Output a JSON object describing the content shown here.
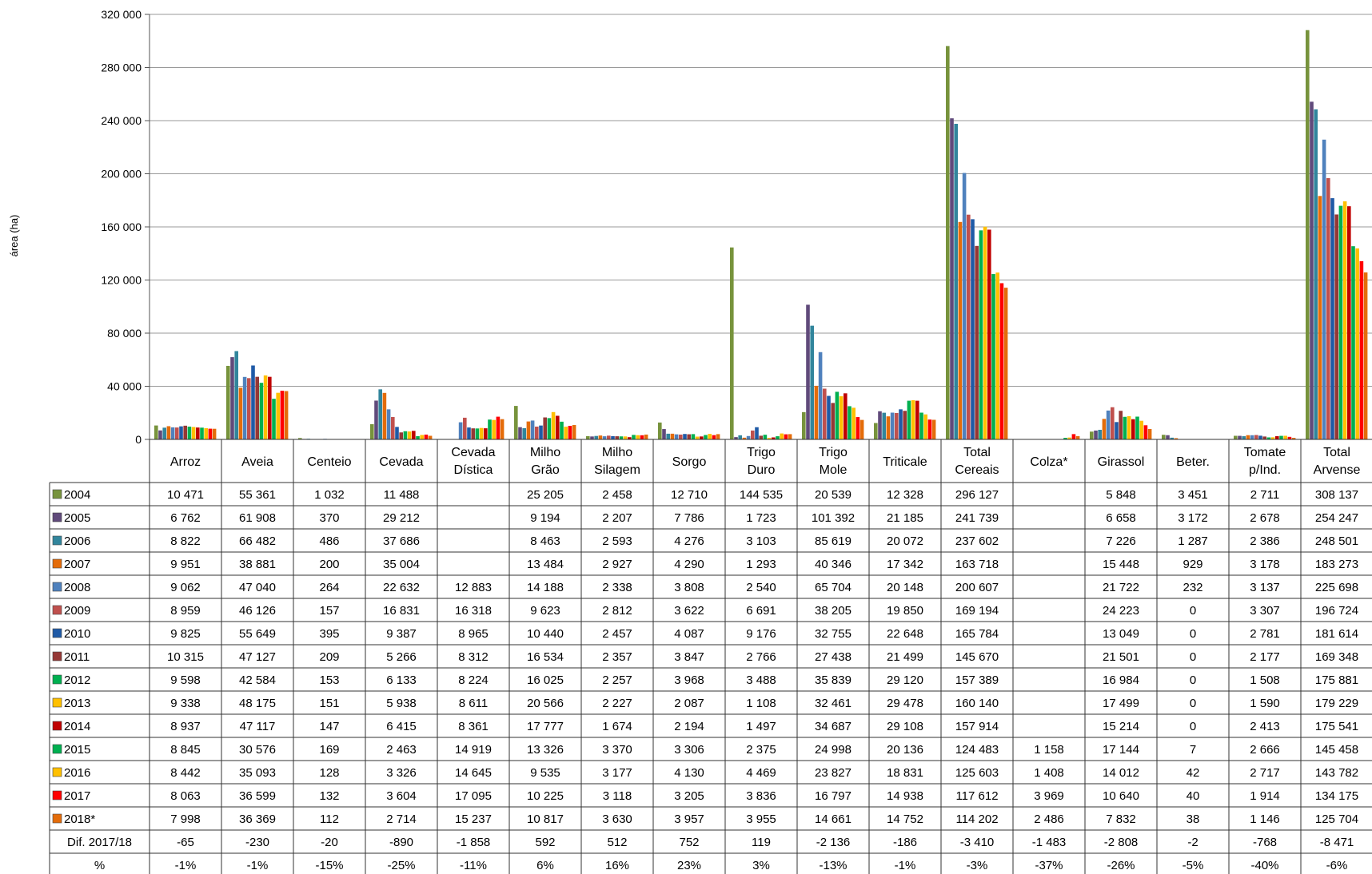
{
  "chart_data": {
    "type": "bar",
    "ylabel": "área (ha)",
    "ylim": [
      0,
      320000
    ],
    "yticks": [
      0,
      40000,
      80000,
      120000,
      160000,
      200000,
      240000,
      280000,
      320000
    ],
    "ytick_labels": [
      "0",
      "40 000",
      "80 000",
      "120 000",
      "160 000",
      "200 000",
      "240 000",
      "280 000",
      "320 000"
    ],
    "grid": true,
    "legend": "data-table",
    "categories": [
      [
        "Arroz"
      ],
      [
        "Aveia"
      ],
      [
        "Centeio"
      ],
      [
        "Cevada"
      ],
      [
        "Cevada",
        "Dística"
      ],
      [
        "Milho",
        "Grão"
      ],
      [
        "Milho",
        "Silagem"
      ],
      [
        "Sorgo"
      ],
      [
        "Trigo",
        "Duro"
      ],
      [
        "Trigo",
        "Mole"
      ],
      [
        "Triticale"
      ],
      [
        "Total",
        "Cereais"
      ],
      [
        "Colza*"
      ],
      [
        "Girassol"
      ],
      [
        "Beter."
      ],
      [
        "Tomate",
        "p/Ind."
      ],
      [
        "Total",
        "Arvense"
      ]
    ],
    "series": [
      {
        "name": "2004",
        "color": "#77933C",
        "values": [
          10471,
          55361,
          1032,
          11488,
          null,
          25205,
          2458,
          12710,
          144535,
          20539,
          12328,
          296127,
          null,
          5848,
          3451,
          2711,
          308137
        ],
        "labels": [
          "10 471",
          "55 361",
          "1 032",
          "11 488",
          "",
          "25 205",
          "2 458",
          "12 710",
          "144 535",
          "20 539",
          "12 328",
          "296 127",
          "",
          "5 848",
          "3 451",
          "2 711",
          "308 137"
        ]
      },
      {
        "name": "2005",
        "color": "#604A7B",
        "values": [
          6762,
          61908,
          370,
          29212,
          null,
          9194,
          2207,
          7786,
          1723,
          101392,
          21185,
          241739,
          null,
          6658,
          3172,
          2678,
          254247
        ],
        "labels": [
          "6 762",
          "61 908",
          "370",
          "29 212",
          "",
          "9 194",
          "2 207",
          "7 786",
          "1 723",
          "101 392",
          "21 185",
          "241 739",
          "",
          "6 658",
          "3 172",
          "2 678",
          "254 247"
        ]
      },
      {
        "name": "2006",
        "color": "#31859C",
        "values": [
          8822,
          66482,
          486,
          37686,
          null,
          8463,
          2593,
          4276,
          3103,
          85619,
          20072,
          237602,
          null,
          7226,
          1287,
          2386,
          248501
        ],
        "labels": [
          "8 822",
          "66 482",
          "486",
          "37 686",
          "",
          "8 463",
          "2 593",
          "4 276",
          "3 103",
          "85 619",
          "20 072",
          "237 602",
          "",
          "7 226",
          "1 287",
          "2 386",
          "248 501"
        ]
      },
      {
        "name": "2007",
        "color": "#E46C0A",
        "values": [
          9951,
          38881,
          200,
          35004,
          null,
          13484,
          2927,
          4290,
          1293,
          40346,
          17342,
          163718,
          null,
          15448,
          929,
          3178,
          183273
        ],
        "labels": [
          "9 951",
          "38 881",
          "200",
          "35 004",
          "",
          "13 484",
          "2 927",
          "4 290",
          "1 293",
          "40 346",
          "17 342",
          "163 718",
          "",
          "15 448",
          "929",
          "3 178",
          "183 273"
        ]
      },
      {
        "name": "2008",
        "color": "#4F81BD",
        "values": [
          9062,
          47040,
          264,
          22632,
          12883,
          14188,
          2338,
          3808,
          2540,
          65704,
          20148,
          200607,
          null,
          21722,
          232,
          3137,
          225698
        ],
        "labels": [
          "9 062",
          "47 040",
          "264",
          "22 632",
          "12 883",
          "14 188",
          "2 338",
          "3 808",
          "2 540",
          "65 704",
          "20 148",
          "200 607",
          "",
          "21 722",
          "232",
          "3 137",
          "225 698"
        ]
      },
      {
        "name": "2009",
        "color": "#C0504D",
        "values": [
          8959,
          46126,
          157,
          16831,
          16318,
          9623,
          2812,
          3622,
          6691,
          38205,
          19850,
          169194,
          null,
          24223,
          0,
          3307,
          196724
        ],
        "labels": [
          "8 959",
          "46 126",
          "157",
          "16 831",
          "16 318",
          "9 623",
          "2 812",
          "3 622",
          "6 691",
          "38 205",
          "19 850",
          "169 194",
          "",
          "24 223",
          "0",
          "3 307",
          "196 724"
        ]
      },
      {
        "name": "2010",
        "color": "#1F5AA6",
        "values": [
          9825,
          55649,
          395,
          9387,
          8965,
          10440,
          2457,
          4087,
          9176,
          32755,
          22648,
          165784,
          null,
          13049,
          0,
          2781,
          181614
        ],
        "labels": [
          "9 825",
          "55 649",
          "395",
          "9 387",
          "8 965",
          "10 440",
          "2 457",
          "4 087",
          "9 176",
          "32 755",
          "22 648",
          "165 784",
          "",
          "13 049",
          "0",
          "2 781",
          "181 614"
        ]
      },
      {
        "name": "2011",
        "color": "#953735",
        "values": [
          10315,
          47127,
          209,
          5266,
          8312,
          16534,
          2357,
          3847,
          2766,
          27438,
          21499,
          145670,
          null,
          21501,
          0,
          2177,
          169348
        ],
        "labels": [
          "10 315",
          "47 127",
          "209",
          "5 266",
          "8 312",
          "16 534",
          "2 357",
          "3 847",
          "2 766",
          "27 438",
          "21 499",
          "145 670",
          "",
          "21 501",
          "0",
          "2 177",
          "169 348"
        ]
      },
      {
        "name": "2012",
        "color": "#00B050",
        "values": [
          9598,
          42584,
          153,
          6133,
          8224,
          16025,
          2257,
          3968,
          3488,
          35839,
          29120,
          157389,
          null,
          16984,
          0,
          1508,
          175881
        ],
        "labels": [
          "9 598",
          "42 584",
          "153",
          "6 133",
          "8 224",
          "16 025",
          "2 257",
          "3 968",
          "3 488",
          "35 839",
          "29 120",
          "157 389",
          "",
          "16 984",
          "0",
          "1 508",
          "175 881"
        ]
      },
      {
        "name": "2013",
        "color": "#FFC000",
        "values": [
          9338,
          48175,
          151,
          5938,
          8611,
          20566,
          2227,
          2087,
          1108,
          32461,
          29478,
          160140,
          null,
          17499,
          0,
          1590,
          179229
        ],
        "labels": [
          "9 338",
          "48 175",
          "151",
          "5 938",
          "8 611",
          "20 566",
          "2 227",
          "2 087",
          "1 108",
          "32 461",
          "29 478",
          "160 140",
          "",
          "17 499",
          "0",
          "1 590",
          "179 229"
        ]
      },
      {
        "name": "2014",
        "color": "#C00000",
        "values": [
          8937,
          47117,
          147,
          6415,
          8361,
          17777,
          1674,
          2194,
          1497,
          34687,
          29108,
          157914,
          null,
          15214,
          0,
          2413,
          175541
        ],
        "labels": [
          "8 937",
          "47 117",
          "147",
          "6 415",
          "8 361",
          "17 777",
          "1 674",
          "2 194",
          "1 497",
          "34 687",
          "29 108",
          "157 914",
          "",
          "15 214",
          "0",
          "2 413",
          "175 541"
        ]
      },
      {
        "name": "2015",
        "color": "#00B050",
        "values": [
          8845,
          30576,
          169,
          2463,
          14919,
          13326,
          3370,
          3306,
          2375,
          24998,
          20136,
          124483,
          1158,
          17144,
          7,
          2666,
          145458
        ],
        "labels": [
          "8 845",
          "30 576",
          "169",
          "2 463",
          "14 919",
          "13 326",
          "3 370",
          "3 306",
          "2 375",
          "24 998",
          "20 136",
          "124 483",
          "1 158",
          "17 144",
          "7",
          "2 666",
          "145 458"
        ]
      },
      {
        "name": "2016",
        "color": "#FFC000",
        "values": [
          8442,
          35093,
          128,
          3326,
          14645,
          9535,
          3177,
          4130,
          4469,
          23827,
          18831,
          125603,
          1408,
          14012,
          42,
          2717,
          143782
        ],
        "labels": [
          "8 442",
          "35 093",
          "128",
          "3 326",
          "14 645",
          "9 535",
          "3 177",
          "4 130",
          "4 469",
          "23 827",
          "18 831",
          "125 603",
          "1 408",
          "14 012",
          "42",
          "2 717",
          "143 782"
        ]
      },
      {
        "name": "2017",
        "color": "#FF0000",
        "values": [
          8063,
          36599,
          132,
          3604,
          17095,
          10225,
          3118,
          3205,
          3836,
          16797,
          14938,
          117612,
          3969,
          10640,
          40,
          1914,
          134175
        ],
        "labels": [
          "8 063",
          "36 599",
          "132",
          "3 604",
          "17 095",
          "10 225",
          "3 118",
          "3 205",
          "3 836",
          "16 797",
          "14 938",
          "117 612",
          "3 969",
          "10 640",
          "40",
          "1 914",
          "134 175"
        ]
      },
      {
        "name": "2018*",
        "color": "#E46C0A",
        "values": [
          7998,
          36369,
          112,
          2714,
          15237,
          10817,
          3630,
          3957,
          3955,
          14661,
          14752,
          114202,
          2486,
          7832,
          38,
          1146,
          125704
        ],
        "labels": [
          "7 998",
          "36 369",
          "112",
          "2 714",
          "15 237",
          "10 817",
          "3 630",
          "3 957",
          "3 955",
          "14 661",
          "14 752",
          "114 202",
          "2 486",
          "7 832",
          "38",
          "1 146",
          "125 704"
        ]
      }
    ],
    "extra_rows": [
      {
        "name": "Dif. 2017/18",
        "labels": [
          "-65",
          "-230",
          "-20",
          "-890",
          "-1 858",
          "592",
          "512",
          "752",
          "119",
          "-2 136",
          "-186",
          "-3 410",
          "-1 483",
          "-2 808",
          "-2",
          "-768",
          "-8 471"
        ]
      },
      {
        "name": "%",
        "labels": [
          "-1%",
          "-1%",
          "-15%",
          "-25%",
          "-11%",
          "6%",
          "16%",
          "23%",
          "3%",
          "-13%",
          "-1%",
          "-3%",
          "-37%",
          "-26%",
          "-5%",
          "-40%",
          "-6%"
        ]
      }
    ]
  }
}
